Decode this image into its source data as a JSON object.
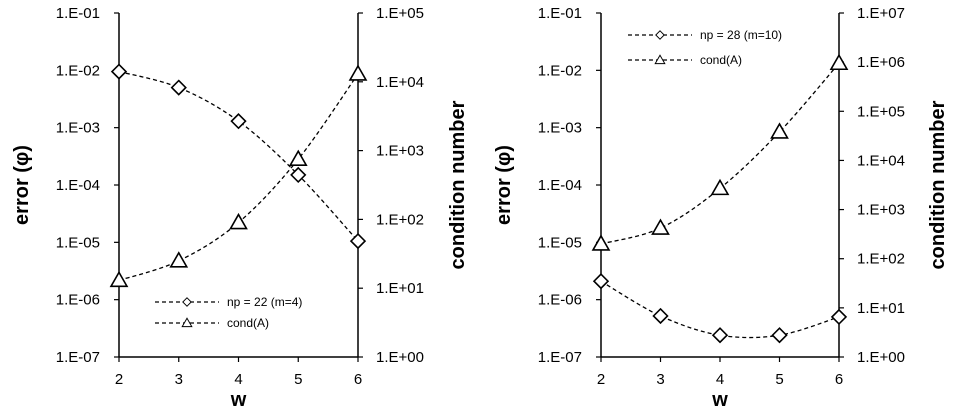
{
  "chart_data": [
    {
      "type": "line",
      "xlabel": "w",
      "ylabel": "error (φ)",
      "y2label": "condition number",
      "x_ticks": [
        "2",
        "3",
        "4",
        "5",
        "6"
      ],
      "xlim": [
        2,
        6
      ],
      "ylim": [
        1e-07,
        0.1
      ],
      "y_scale": "log",
      "y_ticks": [
        "1.E-07",
        "1.E-06",
        "1.E-05",
        "1.E-04",
        "1.E-03",
        "1.E-02",
        "1.E-01"
      ],
      "y2lim": [
        1,
        100000
      ],
      "y2_scale": "log",
      "y2_ticks": [
        "1.E+00",
        "1.E+01",
        "1.E+02",
        "1.E+03",
        "1.E+04",
        "1.E+05"
      ],
      "grid": false,
      "legend_position": "bottom-right",
      "series": [
        {
          "name": "np = 22 (m=4)",
          "axis": "left",
          "marker": "diamond",
          "x": [
            2,
            3,
            4,
            5,
            6
          ],
          "values": [
            0.0095,
            0.005,
            0.0013,
            0.00015,
            1.05e-05
          ]
        },
        {
          "name": "cond(A)",
          "axis": "right",
          "marker": "triangle",
          "x": [
            2,
            3,
            4,
            5,
            6
          ],
          "values": [
            13,
            25,
            90,
            750,
            13000
          ]
        }
      ]
    },
    {
      "type": "line",
      "xlabel": "w",
      "ylabel": "error (φ)",
      "y2label": "condition number",
      "x_ticks": [
        "2",
        "3",
        "4",
        "5",
        "6"
      ],
      "xlim": [
        2,
        6
      ],
      "ylim": [
        1e-07,
        0.1
      ],
      "y_scale": "log",
      "y_ticks": [
        "1.E-07",
        "1.E-06",
        "1.E-05",
        "1.E-04",
        "1.E-03",
        "1.E-02",
        "1.E-01"
      ],
      "y2lim": [
        1,
        10000000
      ],
      "y2_scale": "log",
      "y2_ticks": [
        "1.E+00",
        "1.E+01",
        "1.E+02",
        "1.E+03",
        "1.E+04",
        "1.E+05",
        "1.E+06",
        "1.E+07"
      ],
      "grid": false,
      "legend_position": "top-left",
      "series": [
        {
          "name": "np = 28 (m=10)",
          "axis": "left",
          "marker": "diamond",
          "x": [
            2,
            3,
            4,
            5,
            6
          ],
          "values": [
            2.1e-06,
            5.2e-07,
            2.4e-07,
            2.4e-07,
            5e-07
          ]
        },
        {
          "name": "cond(A)",
          "axis": "right",
          "marker": "triangle",
          "x": [
            2,
            3,
            4,
            5,
            6
          ],
          "values": [
            200,
            420,
            2700,
            38000,
            950000
          ]
        }
      ]
    }
  ]
}
